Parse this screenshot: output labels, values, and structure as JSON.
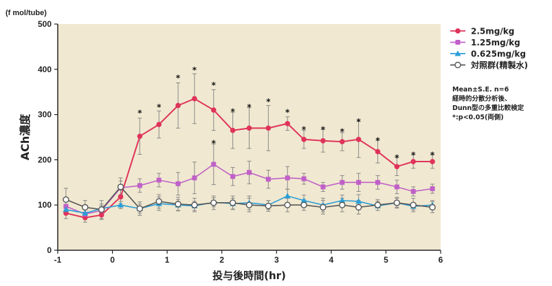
{
  "chart_data": {
    "type": "line",
    "unit_label": "(f mol/tube)",
    "ylabel": "ACh濃度",
    "xlabel": "投与後時間(hr)",
    "xlim": [
      -1,
      6
    ],
    "ylim": [
      0,
      500
    ],
    "x_ticks": [
      "-1",
      "0",
      "1",
      "2",
      "3",
      "4",
      "5",
      "6"
    ],
    "y_ticks": [
      "0",
      "100",
      "200",
      "300",
      "400",
      "500"
    ],
    "background": "#f0e8d0",
    "x": [
      -0.85,
      -0.5,
      -0.2,
      0.15,
      0.5,
      0.85,
      1.2,
      1.5,
      1.85,
      2.2,
      2.5,
      2.85,
      3.2,
      3.5,
      3.85,
      4.2,
      4.5,
      4.85,
      5.2,
      5.5,
      5.85
    ],
    "series": [
      {
        "name": "2.5mg/kg",
        "color": "#e0335a",
        "marker": "circle-filled",
        "values": [
          82,
          72,
          78,
          118,
          252,
          278,
          320,
          335,
          310,
          265,
          270,
          270,
          280,
          245,
          242,
          240,
          245,
          218,
          185,
          196,
          196
        ],
        "errors": [
          12,
          10,
          10,
          15,
          40,
          30,
          50,
          55,
          45,
          40,
          45,
          50,
          15,
          20,
          25,
          20,
          40,
          25,
          20,
          15,
          15
        ]
      },
      {
        "name": "1.25mg/kg",
        "color": "#c060c8",
        "marker": "square-filled",
        "values": [
          97,
          80,
          88,
          138,
          143,
          155,
          147,
          160,
          190,
          163,
          172,
          157,
          160,
          158,
          140,
          150,
          150,
          150,
          140,
          130,
          136
        ],
        "errors": [
          12,
          12,
          10,
          15,
          15,
          15,
          25,
          35,
          45,
          20,
          25,
          20,
          25,
          12,
          10,
          15,
          20,
          15,
          15,
          10,
          10
        ]
      },
      {
        "name": "0.625mg/kg",
        "color": "#2a9ed8",
        "marker": "triangle-filled",
        "values": [
          90,
          82,
          92,
          100,
          92,
          103,
          100,
          98,
          106,
          103,
          105,
          100,
          120,
          110,
          100,
          110,
          108,
          98,
          105,
          97,
          100
        ],
        "errors": [
          8,
          8,
          10,
          8,
          10,
          15,
          12,
          10,
          10,
          12,
          15,
          10,
          15,
          12,
          15,
          12,
          15,
          10,
          10,
          8,
          10
        ]
      },
      {
        "name": "対照群(精製水)",
        "color": "#555555",
        "marker": "circle-open",
        "values": [
          112,
          95,
          90,
          140,
          92,
          108,
          102,
          100,
          105,
          105,
          100,
          98,
          100,
          100,
          95,
          100,
          95,
          100,
          105,
          100,
          95
        ],
        "errors": [
          25,
          15,
          20,
          20,
          15,
          15,
          15,
          15,
          15,
          15,
          15,
          12,
          15,
          12,
          15,
          15,
          15,
          12,
          12,
          15,
          12
        ]
      }
    ],
    "significance": [
      {
        "x": 0.5,
        "y": 305
      },
      {
        "x": 0.85,
        "y": 318
      },
      {
        "x": 1.2,
        "y": 382
      },
      {
        "x": 1.5,
        "y": 400
      },
      {
        "x": 1.85,
        "y": 366
      },
      {
        "x": 1.85,
        "y": 238
      },
      {
        "x": 2.2,
        "y": 308
      },
      {
        "x": 2.5,
        "y": 318
      },
      {
        "x": 2.85,
        "y": 330
      },
      {
        "x": 3.2,
        "y": 306
      },
      {
        "x": 3.5,
        "y": 268
      },
      {
        "x": 3.85,
        "y": 268
      },
      {
        "x": 4.2,
        "y": 264
      },
      {
        "x": 4.5,
        "y": 286
      },
      {
        "x": 4.85,
        "y": 244
      },
      {
        "x": 5.2,
        "y": 206
      },
      {
        "x": 5.5,
        "y": 212
      },
      {
        "x": 5.85,
        "y": 212
      }
    ],
    "significance_symbol": "*",
    "grid": false,
    "legend_position": "right",
    "notes": [
      "Mean±S.E. n=6",
      "経時的分散分析後、",
      "Dunn型の多重比較検定",
      "*:p<0.05(両側)"
    ]
  }
}
